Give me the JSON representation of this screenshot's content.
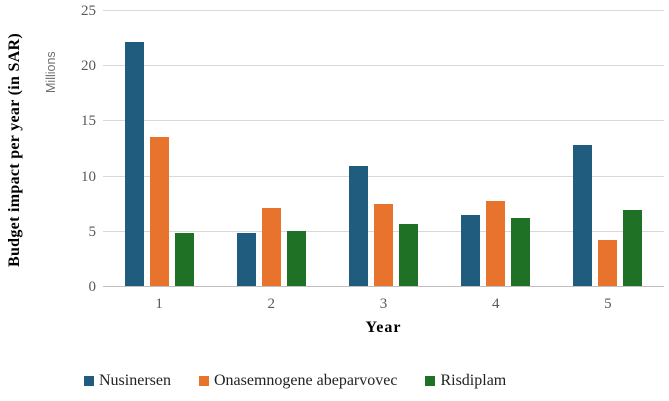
{
  "chart": {
    "y_title": "Budget impact per year (in SAR)",
    "y_units": "Millions",
    "x_title": "Year"
  },
  "chart_data": {
    "type": "bar",
    "title": "",
    "xlabel": "Year",
    "ylabel": "Budget impact per year (in SAR)",
    "y_units_label": "Millions",
    "categories": [
      "1",
      "2",
      "3",
      "4",
      "5"
    ],
    "series": [
      {
        "name": "Nusinersen",
        "color": "#1f5c7d",
        "values": [
          22.1,
          4.8,
          10.9,
          6.4,
          12.8
        ]
      },
      {
        "name": "Onasemnogene abeparvovec",
        "color": "#e8732c",
        "values": [
          13.5,
          7.1,
          7.4,
          7.7,
          4.2
        ]
      },
      {
        "name": "Risdiplam",
        "color": "#1e7125",
        "values": [
          4.8,
          5.0,
          5.6,
          6.2,
          6.9
        ]
      }
    ],
    "ylim": [
      0,
      25
    ],
    "yticks": [
      0,
      5,
      10,
      15,
      20,
      25
    ],
    "grid": true,
    "legend_position": "bottom",
    "colors": {
      "gridline": "#d9d9d9",
      "axis_line": "#bfbfbf",
      "tick_text": "#595959",
      "units_text": "#6f6f6f"
    }
  }
}
